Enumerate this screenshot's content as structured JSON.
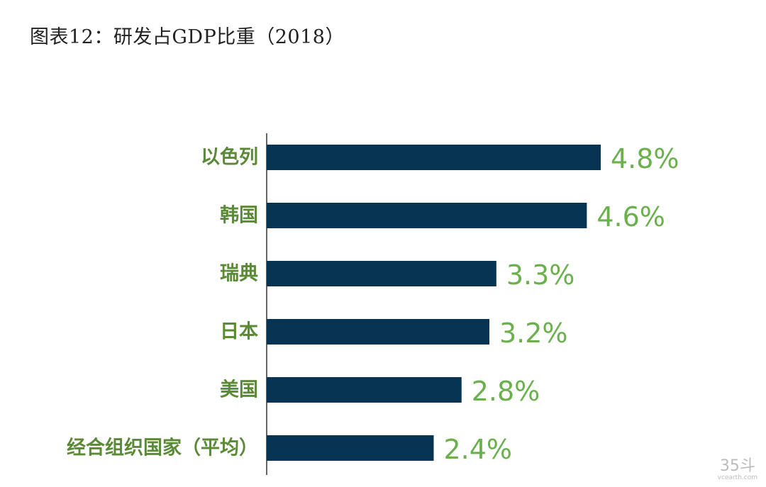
{
  "title": "图表12：研发占GDP比重（2018）",
  "chart_data": {
    "type": "bar",
    "orientation": "horizontal",
    "title": "图表12：研发占GDP比重（2018）",
    "categories": [
      "以色列",
      "韩国",
      "瑞典",
      "日本",
      "美国",
      "经合组织国家（平均）"
    ],
    "values": [
      4.8,
      4.6,
      3.3,
      3.2,
      2.8,
      2.4
    ],
    "value_labels": [
      "4.8%",
      "4.6%",
      "3.3%",
      "3.2%",
      "2.8%",
      "2.4%"
    ],
    "unit": "%",
    "xlim": [
      0,
      6.9
    ],
    "xlabel": "",
    "ylabel": "",
    "grid": false,
    "colors": {
      "bar": "#063452",
      "category_label": "#5b8a37",
      "value_label": "#6ab04c",
      "axis": "#333333"
    }
  },
  "watermark": {
    "big": "35斗",
    "small": "vcearth.com"
  }
}
